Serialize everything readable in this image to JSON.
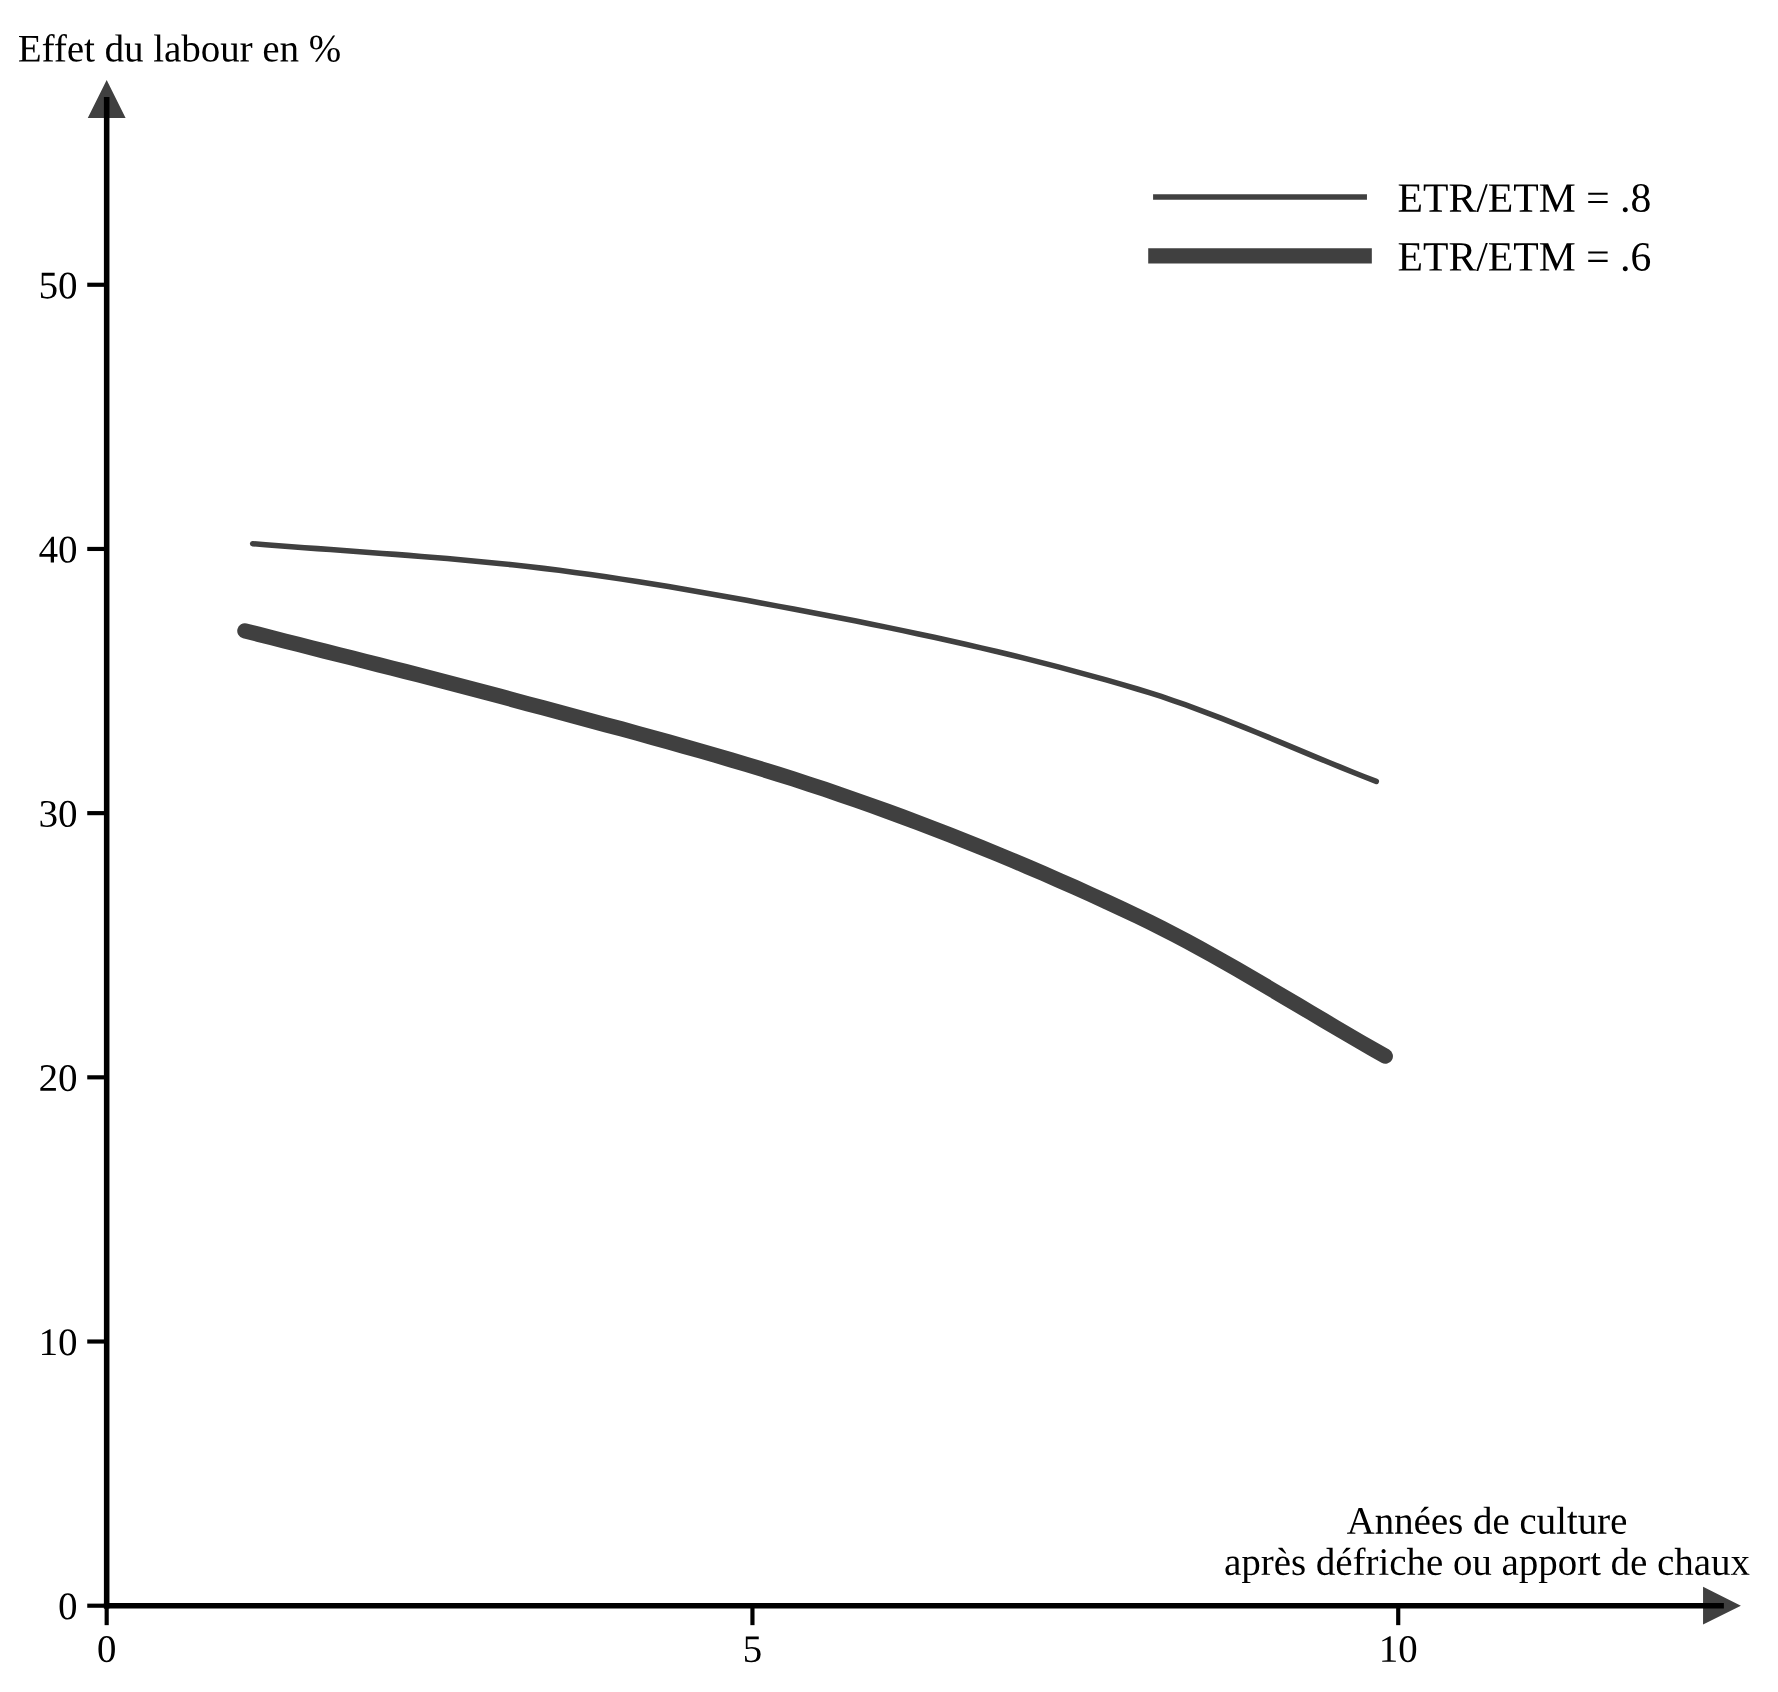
{
  "chart_data": {
    "type": "line",
    "xlabel": "Années de culture\naprès défriche ou apport de chaux",
    "ylabel": "Effet du labour en %",
    "xlim": [
      0,
      12.5
    ],
    "ylim": [
      0,
      57
    ],
    "xticks": [
      0,
      5,
      10
    ],
    "yticks": [
      0,
      10,
      20,
      30,
      40,
      50
    ],
    "grid": false,
    "legend": "top right",
    "marker": "none",
    "line_style": "solid",
    "series": [
      {
        "name": "ETR/ETM = .8",
        "color": "#404040",
        "x": [
          1.13,
          3.14,
          5.56,
          7.98,
          9.83
        ],
        "values": [
          40.2,
          39.4,
          37.5,
          34.7,
          31.2
        ]
      },
      {
        "name": "ETR/ETM = .6",
        "color": "#404040",
        "x": [
          1.07,
          3.14,
          5.56,
          7.98,
          9.9
        ],
        "values": [
          36.9,
          34.3,
          30.9,
          26.1,
          20.8
        ]
      }
    ]
  }
}
